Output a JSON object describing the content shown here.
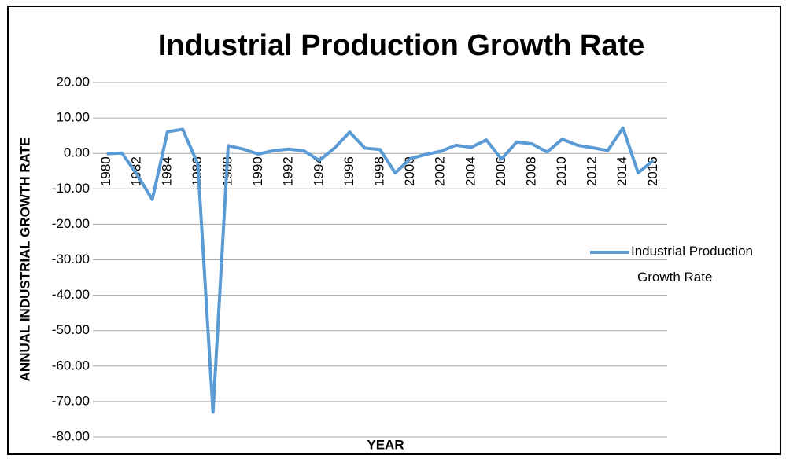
{
  "chart_data": {
    "type": "line",
    "title": "Industrial Production Growth Rate",
    "xlabel": "YEAR",
    "ylabel": "ANNUAL INDUSTRIAL GROWTH RATE",
    "categories": [
      "1980",
      null,
      "1982",
      null,
      "1984",
      null,
      "1986",
      null,
      "1988",
      null,
      "1990",
      null,
      "1992",
      null,
      "1994",
      null,
      "1996",
      null,
      "1998",
      null,
      "2000",
      null,
      "2002",
      null,
      "2004",
      null,
      "2006",
      null,
      "2008",
      null,
      "2010",
      null,
      "2012",
      null,
      "2014",
      null,
      "2016"
    ],
    "series": [
      {
        "name": "Industrial Production Growth Rate",
        "color": "#5b9bd5",
        "values": [
          -0.1,
          0.1,
          -6,
          -13,
          6.1,
          6.8,
          -3,
          -73,
          2.2,
          1.2,
          -0.2,
          0.8,
          1.2,
          0.7,
          -2,
          1.5,
          6,
          1.5,
          1.1,
          -5.5,
          -1.5,
          -0.3,
          0.6,
          2.3,
          1.7,
          3.8,
          -1.6,
          3.2,
          2.7,
          0.4,
          4,
          2.3,
          1.6,
          0.8,
          7.2,
          -5.5,
          -2
        ]
      }
    ],
    "ylim": [
      -80,
      20
    ],
    "yticks": [
      {
        "value": -80,
        "label": "-80.00"
      },
      {
        "value": -70,
        "label": "-70.00"
      },
      {
        "value": -60,
        "label": "-60.00"
      },
      {
        "value": -50,
        "label": "-50.00"
      },
      {
        "value": -40,
        "label": "-40.00"
      },
      {
        "value": -30,
        "label": "-30.00"
      },
      {
        "value": -20,
        "label": "-20.00"
      },
      {
        "value": -10,
        "label": "-10.00"
      },
      {
        "value": 0,
        "label": "0.00"
      },
      {
        "value": 10,
        "label": "10.00"
      },
      {
        "value": 20,
        "label": "20.00"
      }
    ],
    "grid": true,
    "legend": "right"
  }
}
